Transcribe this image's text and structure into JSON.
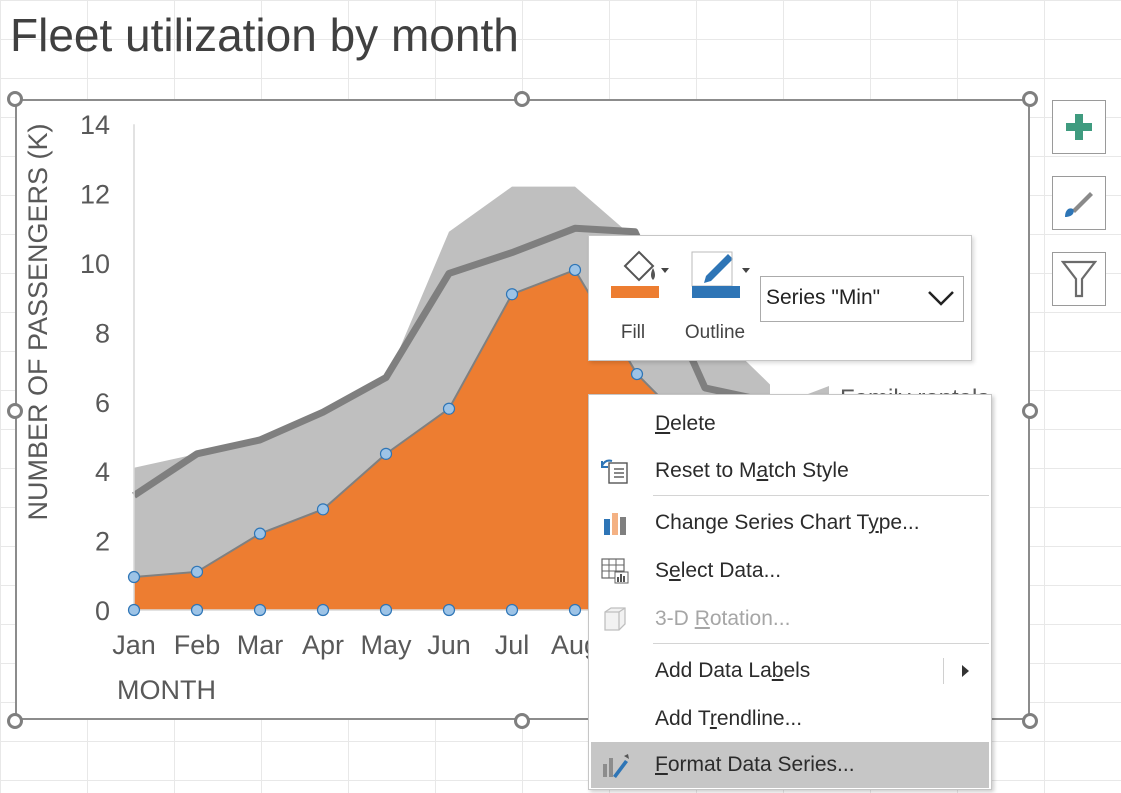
{
  "sheet": {
    "title": "Fleet utilization by month"
  },
  "colors": {
    "range_fill": "#bfbfbf",
    "avg_line": "#7f7f7f",
    "min_fill": "#ed7d31",
    "min_line": "#808080",
    "marker": "#9dc3e6",
    "marker_stroke": "#2e75b6"
  },
  "chart_data": {
    "type": "area",
    "title": "",
    "xlabel": "MONTH",
    "ylabel": "NUMBER OF PASSENGERS (K)",
    "ylim": [
      0,
      14
    ],
    "yticks": [
      "0",
      "2",
      "4",
      "6",
      "8",
      "10",
      "12",
      "14"
    ],
    "categories": [
      "Jan",
      "Feb",
      "Mar",
      "Apr",
      "May",
      "Jun",
      "Jul",
      "Aug"
    ],
    "grid": false,
    "legend": "right",
    "legend_label_visible": "Family rentals",
    "series": [
      {
        "name": "",
        "kind": "area",
        "values": [
          4.1,
          4.5,
          5.0,
          5.7,
          6.6,
          10.9,
          12.2,
          12.2
        ]
      },
      {
        "name": "",
        "kind": "line",
        "values": [
          3.3,
          4.5,
          4.9,
          5.7,
          6.7,
          9.7,
          10.3,
          11.0
        ]
      },
      {
        "name": "Min",
        "kind": "area",
        "values": [
          0.95,
          1.1,
          2.2,
          2.9,
          4.5,
          5.8,
          9.1,
          9.8
        ]
      }
    ]
  },
  "side_buttons": [
    {
      "name": "chart-elements-button",
      "icon": "plus-icon"
    },
    {
      "name": "chart-styles-button",
      "icon": "brush-icon"
    },
    {
      "name": "chart-filters-button",
      "icon": "filter-icon"
    }
  ],
  "format_bar": {
    "fill_label": "Fill",
    "outline_label": "Outline",
    "series_selected": "Series \"Min\"",
    "fill_color": "#ed7d31",
    "outline_color": "#2e75b6"
  },
  "context_menu": {
    "items": [
      {
        "pre": "",
        "u": "D",
        "post": "elete",
        "icon": "",
        "disabled": false
      },
      {
        "pre": "Reset to M",
        "u": "a",
        "post": "tch Style",
        "icon": "reset-style-icon",
        "disabled": false
      },
      {
        "pre": "Change Series Chart T",
        "u": "y",
        "post": "pe...",
        "icon": "chart-type-icon",
        "disabled": false
      },
      {
        "pre": "S",
        "u": "e",
        "post": "lect Data...",
        "icon": "select-data-icon",
        "disabled": false
      },
      {
        "pre": "3-D ",
        "u": "R",
        "post": "otation...",
        "icon": "rotation-icon",
        "disabled": true
      },
      {
        "pre": "Add Data La",
        "u": "b",
        "post": "els",
        "icon": "",
        "disabled": false
      },
      {
        "pre": "Add T",
        "u": "r",
        "post": "endline...",
        "icon": "",
        "disabled": false
      },
      {
        "pre": "",
        "u": "F",
        "post": "ormat Data Series...",
        "icon": "format-series-icon",
        "disabled": false
      }
    ]
  }
}
